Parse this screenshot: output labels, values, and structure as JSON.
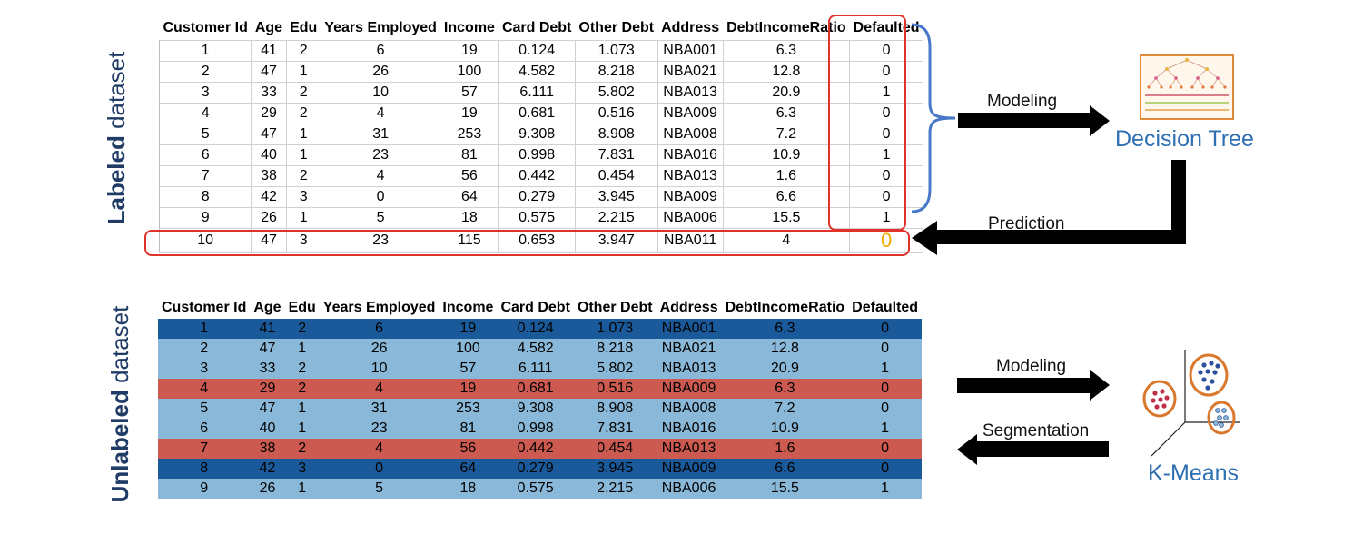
{
  "labeled": {
    "side_label_bold": "Labeled",
    "side_label_rest": " dataset",
    "headers": [
      "Customer Id",
      "Age",
      "Edu",
      "Years Employed",
      "Income",
      "Card Debt",
      "Other Debt",
      "Address",
      "DebtIncomeRatio",
      "Defaulted"
    ],
    "rows": [
      [
        "1",
        "41",
        "2",
        "6",
        "19",
        "0.124",
        "1.073",
        "NBA001",
        "6.3",
        "0"
      ],
      [
        "2",
        "47",
        "1",
        "26",
        "100",
        "4.582",
        "8.218",
        "NBA021",
        "12.8",
        "0"
      ],
      [
        "3",
        "33",
        "2",
        "10",
        "57",
        "6.111",
        "5.802",
        "NBA013",
        "20.9",
        "1"
      ],
      [
        "4",
        "29",
        "2",
        "4",
        "19",
        "0.681",
        "0.516",
        "NBA009",
        "6.3",
        "0"
      ],
      [
        "5",
        "47",
        "1",
        "31",
        "253",
        "9.308",
        "8.908",
        "NBA008",
        "7.2",
        "0"
      ],
      [
        "6",
        "40",
        "1",
        "23",
        "81",
        "0.998",
        "7.831",
        "NBA016",
        "10.9",
        "1"
      ],
      [
        "7",
        "38",
        "2",
        "4",
        "56",
        "0.442",
        "0.454",
        "NBA013",
        "1.6",
        "0"
      ],
      [
        "8",
        "42",
        "3",
        "0",
        "64",
        "0.279",
        "3.945",
        "NBA009",
        "6.6",
        "0"
      ],
      [
        "9",
        "26",
        "1",
        "5",
        "18",
        "0.575",
        "2.215",
        "NBA006",
        "15.5",
        "1"
      ],
      [
        "10",
        "47",
        "3",
        "23",
        "115",
        "0.653",
        "3.947",
        "NBA011",
        "4",
        "0"
      ]
    ],
    "predicted_value_color": "#f2a900"
  },
  "unlabeled": {
    "side_label_bold": "Unlabeled",
    "side_label_rest": " dataset",
    "headers": [
      "Customer Id",
      "Age",
      "Edu",
      "Years Employed",
      "Income",
      "Card Debt",
      "Other Debt",
      "Address",
      "DebtIncomeRatio",
      "Defaulted"
    ],
    "rows": [
      [
        "1",
        "41",
        "2",
        "6",
        "19",
        "0.124",
        "1.073",
        "NBA001",
        "6.3",
        "0"
      ],
      [
        "2",
        "47",
        "1",
        "26",
        "100",
        "4.582",
        "8.218",
        "NBA021",
        "12.8",
        "0"
      ],
      [
        "3",
        "33",
        "2",
        "10",
        "57",
        "6.111",
        "5.802",
        "NBA013",
        "20.9",
        "1"
      ],
      [
        "4",
        "29",
        "2",
        "4",
        "19",
        "0.681",
        "0.516",
        "NBA009",
        "6.3",
        "0"
      ],
      [
        "5",
        "47",
        "1",
        "31",
        "253",
        "9.308",
        "8.908",
        "NBA008",
        "7.2",
        "0"
      ],
      [
        "6",
        "40",
        "1",
        "23",
        "81",
        "0.998",
        "7.831",
        "NBA016",
        "10.9",
        "1"
      ],
      [
        "7",
        "38",
        "2",
        "4",
        "56",
        "0.442",
        "0.454",
        "NBA013",
        "1.6",
        "0"
      ],
      [
        "8",
        "42",
        "3",
        "0",
        "64",
        "0.279",
        "3.945",
        "NBA009",
        "6.6",
        "0"
      ],
      [
        "9",
        "26",
        "1",
        "5",
        "18",
        "0.575",
        "2.215",
        "NBA006",
        "15.5",
        "1"
      ]
    ],
    "row_colors": [
      "dark",
      "light",
      "light",
      "red",
      "light",
      "light",
      "red",
      "dark",
      "light"
    ],
    "colors": {
      "dark": "#1b5a9a",
      "light": "#8ab8d8",
      "red": "#cd5a50"
    }
  },
  "flow": {
    "modeling_top": "Modeling",
    "prediction": "Prediction",
    "modeling_bottom": "Modeling",
    "segmentation": "Segmentation"
  },
  "models": {
    "decision_tree": "Decision Tree",
    "kmeans": "K-Means",
    "label_color": "#2f6fb3"
  },
  "accents": {
    "highlight_red": "#e0322b",
    "brace_blue": "#4a78c8",
    "cluster_orange": "#d9782d"
  }
}
